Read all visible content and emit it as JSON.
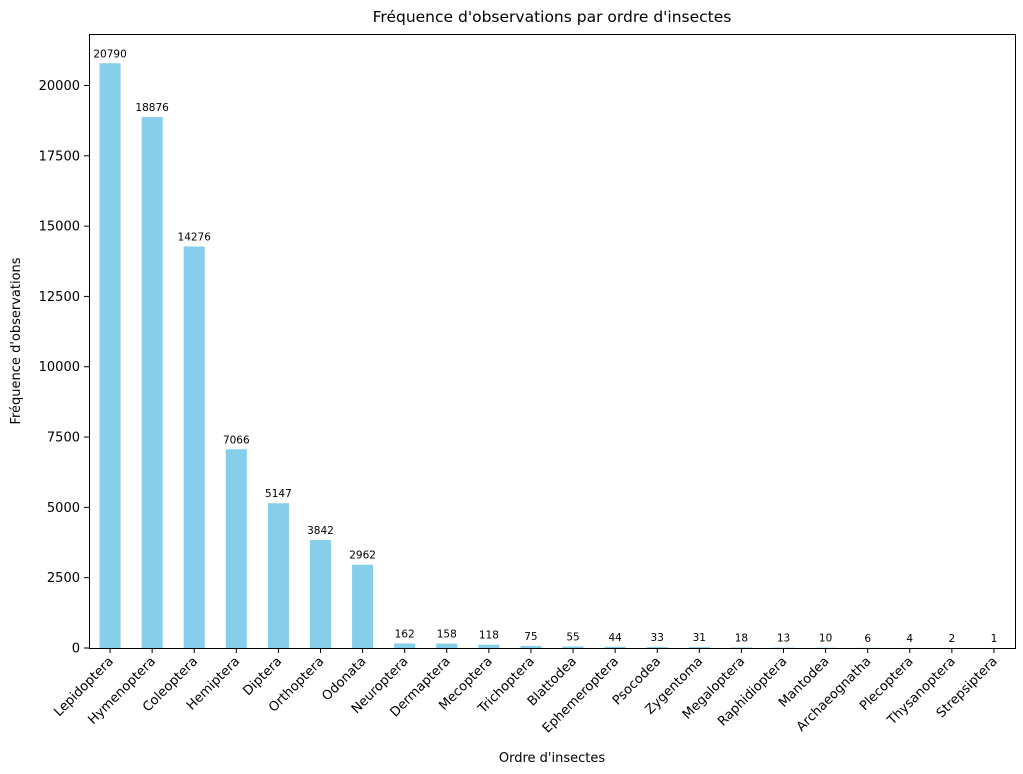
{
  "chart_data": {
    "type": "bar",
    "title": "Fréquence d'observations par ordre d'insectes",
    "xlabel": "Ordre d'insectes",
    "ylabel": "Fréquence d'observations",
    "categories": [
      "Lepidoptera",
      "Hymenoptera",
      "Coleoptera",
      "Hemiptera",
      "Diptera",
      "Orthoptera",
      "Odonata",
      "Neuroptera",
      "Dermaptera",
      "Mecoptera",
      "Trichoptera",
      "Blattodea",
      "Ephemeroptera",
      "Psocodea",
      "Zygentoma",
      "Megaloptera",
      "Raphidioptera",
      "Mantodea",
      "Archaeognatha",
      "Plecoptera",
      "Thysanoptera",
      "Strepsiptera"
    ],
    "values": [
      20790,
      18876,
      14276,
      7066,
      5147,
      3842,
      2962,
      162,
      158,
      118,
      75,
      55,
      44,
      33,
      31,
      18,
      13,
      10,
      6,
      4,
      2,
      1
    ],
    "data_labels": [
      "20790",
      "18876",
      "14276",
      "7066",
      "5147",
      "3842",
      "2962",
      "162",
      "158",
      "118",
      "75",
      "55",
      "44",
      "33",
      "31",
      "18",
      "13",
      "10",
      "6",
      "4",
      "2",
      "1"
    ],
    "ylim": [
      0,
      21830
    ],
    "yticks": [
      0,
      2500,
      5000,
      7500,
      10000,
      12500,
      15000,
      17500,
      20000
    ],
    "ytick_labels": [
      "0",
      "2500",
      "5000",
      "7500",
      "10000",
      "12500",
      "15000",
      "17500",
      "20000"
    ],
    "grid": false,
    "bar_color": "#87CEEB",
    "xtick_rotation_deg": 45
  }
}
